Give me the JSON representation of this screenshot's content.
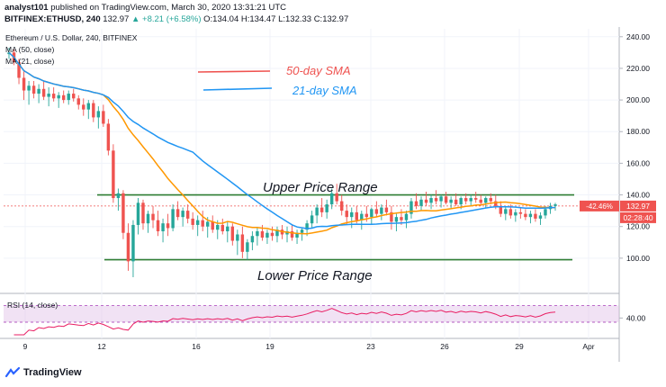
{
  "header": {
    "line1": {
      "user": "analyst101",
      "text": "published on TradingView.com, March 30, 2020 13:31:21 UTC"
    },
    "line2": {
      "symbol": "BITFINEX:ETHUSD, 240",
      "last": "132.97",
      "change": "▲ +8.21 (+6.58%)",
      "ohlc": "O:134.04 H:134.47 L:132.33 C:132.97"
    }
  },
  "chart_data": {
    "type": "candlestick",
    "legend_title": "Ethereum / U.S. Dollar, 240, BITFINEX",
    "indicators": [
      "MA (50, close)",
      "MA (21, close)"
    ],
    "annotations": {
      "sma50_label": "50-day SMA",
      "sma21_label": "21-day SMA",
      "upper_range_label": "Upper Price Range",
      "lower_range_label": "Lower Price Range"
    },
    "levels": {
      "upper_range": 140,
      "lower_range": 99
    },
    "price_axis": {
      "min": 80,
      "max": 245,
      "ticks": [
        "240.00",
        "220.00",
        "200.00",
        "180.00",
        "160.00",
        "140.00",
        "120.00",
        "100.00"
      ]
    },
    "x_ticks": [
      "9",
      "12",
      "16",
      "19",
      "23",
      "26",
      "29",
      "Apr"
    ],
    "current_price": {
      "value": 132.97,
      "label": "132.97",
      "pct_label": "-42.46%",
      "countdown": "02:28:40"
    },
    "colors": {
      "up": "#26a69a",
      "down": "#ef5350",
      "sma50": "#ff9800",
      "sma21": "#2196f3",
      "range": "#2e7d32",
      "rsi": "#e91e63"
    },
    "candles": [
      [
        229,
        233,
        226,
        230
      ],
      [
        230,
        232,
        222,
        224
      ],
      [
        224,
        226,
        210,
        214
      ],
      [
        214,
        218,
        200,
        206
      ],
      [
        206,
        212,
        197,
        209
      ],
      [
        209,
        212,
        201,
        204
      ],
      [
        204,
        210,
        198,
        207
      ],
      [
        207,
        212,
        200,
        202
      ],
      [
        202,
        208,
        196,
        204
      ],
      [
        204,
        208,
        199,
        201
      ],
      [
        201,
        205,
        195,
        203
      ],
      [
        203,
        206,
        198,
        200
      ],
      [
        200,
        206,
        197,
        204
      ],
      [
        204,
        207,
        199,
        201
      ],
      [
        201,
        203,
        194,
        197
      ],
      [
        197,
        201,
        190,
        194
      ],
      [
        194,
        200,
        188,
        198
      ],
      [
        198,
        200,
        186,
        189
      ],
      [
        189,
        196,
        182,
        193
      ],
      [
        193,
        197,
        183,
        185
      ],
      [
        185,
        188,
        165,
        168
      ],
      [
        168,
        172,
        135,
        138
      ],
      [
        138,
        144,
        130,
        141
      ],
      [
        141,
        143,
        112,
        116
      ],
      [
        116,
        122,
        92,
        98
      ],
      [
        98,
        124,
        88,
        121
      ],
      [
        121,
        138,
        115,
        135
      ],
      [
        135,
        137,
        118,
        122
      ],
      [
        122,
        130,
        116,
        128
      ],
      [
        128,
        133,
        119,
        124
      ],
      [
        124,
        130,
        114,
        117
      ],
      [
        117,
        125,
        110,
        122
      ],
      [
        122,
        128,
        114,
        119
      ],
      [
        119,
        134,
        117,
        131
      ],
      [
        131,
        136,
        124,
        126
      ],
      [
        126,
        132,
        120,
        130
      ],
      [
        130,
        134,
        122,
        125
      ],
      [
        125,
        129,
        118,
        121
      ],
      [
        121,
        127,
        114,
        124
      ],
      [
        124,
        130,
        117,
        120
      ],
      [
        120,
        126,
        113,
        123
      ],
      [
        123,
        127,
        116,
        118
      ],
      [
        118,
        124,
        112,
        121
      ],
      [
        121,
        125,
        115,
        117
      ],
      [
        117,
        123,
        110,
        120
      ],
      [
        120,
        122,
        108,
        111
      ],
      [
        111,
        118,
        102,
        115
      ],
      [
        115,
        120,
        100,
        104
      ],
      [
        104,
        112,
        99,
        110
      ],
      [
        110,
        117,
        105,
        114
      ],
      [
        114,
        119,
        108,
        117
      ],
      [
        117,
        121,
        111,
        113
      ],
      [
        113,
        118,
        109,
        116
      ],
      [
        116,
        120,
        111,
        114
      ],
      [
        114,
        120,
        110,
        118
      ],
      [
        118,
        121,
        112,
        115
      ],
      [
        115,
        120,
        110,
        117
      ],
      [
        117,
        121,
        111,
        113
      ],
      [
        113,
        118,
        109,
        116
      ],
      [
        116,
        119,
        111,
        118
      ],
      [
        118,
        124,
        114,
        122
      ],
      [
        122,
        130,
        119,
        127
      ],
      [
        127,
        134,
        122,
        132
      ],
      [
        132,
        138,
        126,
        129
      ],
      [
        129,
        137,
        125,
        134
      ],
      [
        134,
        144,
        131,
        141
      ],
      [
        141,
        147,
        134,
        136
      ],
      [
        136,
        140,
        127,
        130
      ],
      [
        130,
        134,
        121,
        126
      ],
      [
        126,
        132,
        119,
        129
      ],
      [
        129,
        133,
        122,
        124
      ],
      [
        124,
        130,
        118,
        128
      ],
      [
        128,
        133,
        123,
        126
      ],
      [
        126,
        132,
        121,
        131
      ],
      [
        131,
        136,
        126,
        128
      ],
      [
        128,
        134,
        124,
        132
      ],
      [
        132,
        137,
        127,
        129
      ],
      [
        129,
        133,
        118,
        123
      ],
      [
        123,
        128,
        117,
        126
      ],
      [
        126,
        131,
        121,
        124
      ],
      [
        124,
        130,
        119,
        128
      ],
      [
        128,
        138,
        125,
        136
      ],
      [
        136,
        141,
        131,
        133
      ],
      [
        133,
        139,
        130,
        137
      ],
      [
        137,
        142,
        133,
        135
      ],
      [
        135,
        140,
        131,
        138
      ],
      [
        138,
        143,
        134,
        136
      ],
      [
        136,
        140,
        132,
        139
      ],
      [
        139,
        142,
        134,
        135
      ],
      [
        135,
        139,
        131,
        137
      ],
      [
        137,
        141,
        133,
        134
      ],
      [
        134,
        139,
        131,
        138
      ],
      [
        138,
        141,
        134,
        136
      ],
      [
        136,
        140,
        133,
        138
      ],
      [
        138,
        142,
        135,
        137
      ],
      [
        137,
        140,
        133,
        135
      ],
      [
        135,
        139,
        132,
        138
      ],
      [
        138,
        141,
        134,
        136
      ],
      [
        136,
        140,
        131,
        133
      ],
      [
        133,
        136,
        126,
        128
      ],
      [
        128,
        133,
        124,
        131
      ],
      [
        131,
        134,
        125,
        127
      ],
      [
        127,
        131,
        123,
        129
      ],
      [
        129,
        132,
        125,
        128
      ],
      [
        128,
        131,
        124,
        126
      ],
      [
        126,
        130,
        122,
        128
      ],
      [
        128,
        131,
        123,
        125
      ],
      [
        125,
        129,
        121,
        127
      ],
      [
        127,
        133,
        125,
        131
      ],
      [
        131,
        135,
        128,
        133
      ],
      [
        133,
        135,
        130,
        134
      ]
    ],
    "rsi": {
      "label": "RSI (14, close)",
      "tick": "40.00",
      "upper": 70,
      "lower": 30
    }
  }
}
